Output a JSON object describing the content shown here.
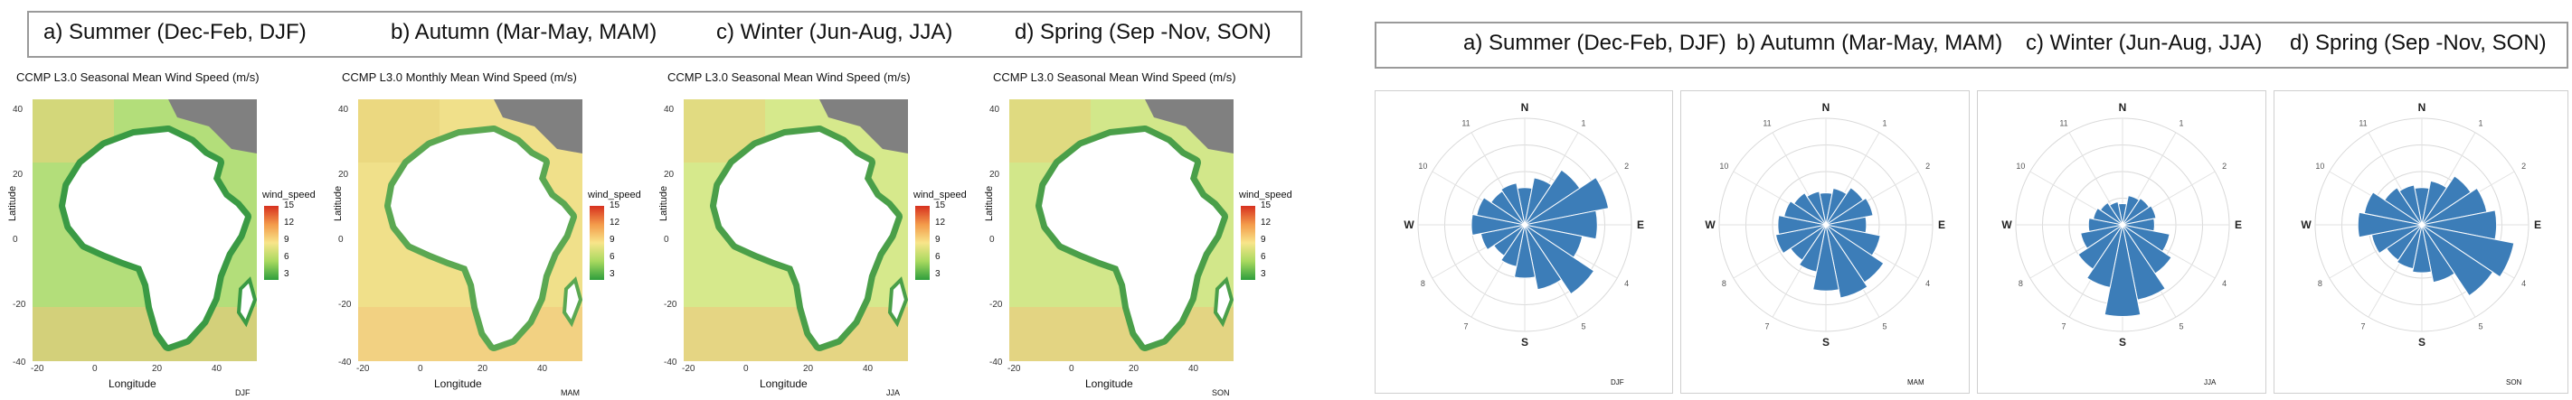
{
  "left_header": {
    "titles": [
      "a) Summer (Dec-Feb, DJF)",
      "b) Autumn (Mar-May, MAM)",
      "c) Winter (Jun-Aug, JJA)",
      "d) Spring (Sep -Nov, SON)"
    ]
  },
  "right_header": {
    "titles": [
      "a) Summer (Dec-Feb, DJF)",
      "b) Autumn (Mar-May, MAM)",
      "c) Winter (Jun-Aug, JJA)",
      "d) Spring (Sep -Nov, SON)"
    ]
  },
  "maps": [
    {
      "title": "CCMP L3.0 Seasonal Mean Wind Speed (m/s)",
      "season_code": "DJF",
      "legend_title": "wind_speed",
      "legend_ticks": [
        "15",
        "12",
        "9",
        "6",
        "3"
      ],
      "xlabel": "Longitude",
      "ylabel": "Latitude",
      "xticks": [
        "-20",
        "0",
        "20",
        "40"
      ],
      "yticks": [
        "40",
        "20",
        "0",
        "-20",
        "-40"
      ],
      "sea_color": "#b3de7a",
      "coast_color": "#3a9a44"
    },
    {
      "title": "CCMP L3.0 Monthly Mean Wind Speed (m/s)",
      "season_code": "MAM",
      "legend_title": "wind_speed",
      "legend_ticks": [
        "15",
        "12",
        "9",
        "6",
        "3"
      ],
      "xlabel": "Longitude",
      "ylabel": "Latitude",
      "xticks": [
        "-20",
        "0",
        "20",
        "40"
      ],
      "yticks": [
        "40",
        "20",
        "0",
        "-20",
        "-40"
      ],
      "sea_color": "#f0e08a",
      "coast_color": "#5ba852"
    },
    {
      "title": "CCMP L3.0 Seasonal Mean Wind Speed (m/s)",
      "season_code": "JJA",
      "legend_title": "wind_speed",
      "legend_ticks": [
        "15",
        "12",
        "9",
        "6",
        "3"
      ],
      "xlabel": "Longitude",
      "ylabel": "Latitude",
      "xticks": [
        "-20",
        "0",
        "20",
        "40"
      ],
      "yticks": [
        "40",
        "20",
        "0",
        "-20",
        "-40"
      ],
      "sea_color": "#d6e98c",
      "coast_color": "#4a9f49"
    },
    {
      "title": "CCMP L3.0 Seasonal Mean Wind Speed (m/s)",
      "season_code": "SON",
      "legend_title": "wind_speed",
      "legend_ticks": [
        "15",
        "12",
        "9",
        "6",
        "3"
      ],
      "xlabel": "Longitude",
      "ylabel": "Latitude",
      "xticks": [
        "-20",
        "0",
        "20",
        "40"
      ],
      "yticks": [
        "40",
        "20",
        "0",
        "-20",
        "-40"
      ],
      "sea_color": "#d2e78a",
      "coast_color": "#4a9f49"
    }
  ],
  "roses": [
    {
      "season_code": "DJF",
      "directions": [
        "N",
        "E",
        "S",
        "W"
      ],
      "hours": [
        "1",
        "2",
        "4",
        "5",
        "7",
        "8",
        "10",
        "11"
      ],
      "petals": [
        0.35,
        0.45,
        0.62,
        0.8,
        0.68,
        0.55,
        0.78,
        0.62,
        0.5,
        0.4,
        0.35,
        0.42,
        0.5,
        0.46,
        0.38,
        0.4
      ],
      "fill_color": "#3c7db8"
    },
    {
      "season_code": "MAM",
      "directions": [
        "N",
        "E",
        "S",
        "W"
      ],
      "hours": [
        "1",
        "2",
        "4",
        "5",
        "7",
        "8",
        "10",
        "11"
      ],
      "petals": [
        0.3,
        0.35,
        0.42,
        0.45,
        0.38,
        0.52,
        0.65,
        0.7,
        0.62,
        0.45,
        0.4,
        0.48,
        0.45,
        0.4,
        0.36,
        0.32
      ],
      "fill_color": "#3c7db8"
    },
    {
      "season_code": "JJA",
      "directions": [
        "N",
        "E",
        "S",
        "W"
      ],
      "hours": [
        "1",
        "2",
        "4",
        "5",
        "7",
        "8",
        "10",
        "11"
      ],
      "petals": [
        0.2,
        0.28,
        0.3,
        0.32,
        0.3,
        0.45,
        0.55,
        0.72,
        0.86,
        0.6,
        0.5,
        0.4,
        0.32,
        0.28,
        0.25,
        0.22
      ],
      "fill_color": "#3c7db8"
    },
    {
      "season_code": "SON",
      "directions": [
        "N",
        "E",
        "S",
        "W"
      ],
      "hours": [
        "1",
        "2",
        "4",
        "5",
        "7",
        "8",
        "10",
        "11"
      ],
      "petals": [
        0.35,
        0.42,
        0.55,
        0.62,
        0.7,
        0.88,
        0.8,
        0.55,
        0.45,
        0.42,
        0.4,
        0.48,
        0.6,
        0.55,
        0.42,
        0.38
      ],
      "fill_color": "#3c7db8"
    }
  ]
}
